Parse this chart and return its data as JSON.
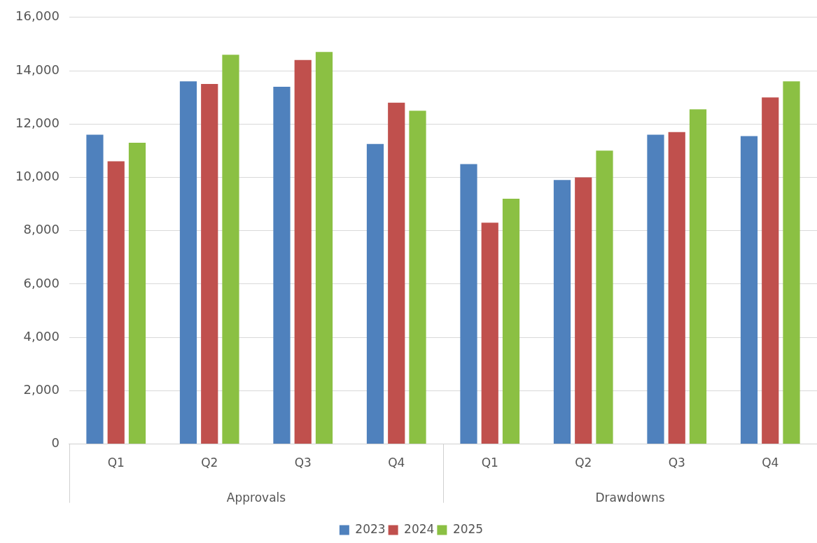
{
  "chart_data": {
    "type": "bar",
    "categories": [
      "Q1",
      "Q2",
      "Q3",
      "Q4",
      "Q1",
      "Q2",
      "Q3",
      "Q4"
    ],
    "series": [
      {
        "name": "2023",
        "color": "#4f81bd",
        "values": [
          11600,
          13600,
          13400,
          11250,
          10500,
          9900,
          11600,
          11550
        ]
      },
      {
        "name": "2024",
        "color": "#c0504d",
        "values": [
          10600,
          13500,
          14400,
          12800,
          8300,
          10000,
          11700,
          13000
        ]
      },
      {
        "name": "2025",
        "color": "#8bc043",
        "values": [
          11300,
          14600,
          14700,
          12500,
          9200,
          11000,
          12550,
          13600
        ]
      }
    ],
    "ylim": [
      0,
      16000
    ],
    "yticks": [
      0,
      {
        "value": 2000,
        "label": "2,000"
      },
      {
        "value": 4000,
        "label": "4,000"
      },
      {
        "value": 6000,
        "label": "6,000"
      },
      {
        "value": 8000,
        "label": "8,000"
      },
      {
        "value": 10000,
        "label": "10,000"
      },
      {
        "value": 12000,
        "label": "12,000"
      },
      {
        "value": 14000,
        "label": "14,000"
      },
      {
        "value": 16000,
        "label": "16,000"
      }
    ],
    "annotations": [
      "Approvals",
      "Drawdowns"
    ],
    "grid": "y",
    "legend": "bottom"
  }
}
